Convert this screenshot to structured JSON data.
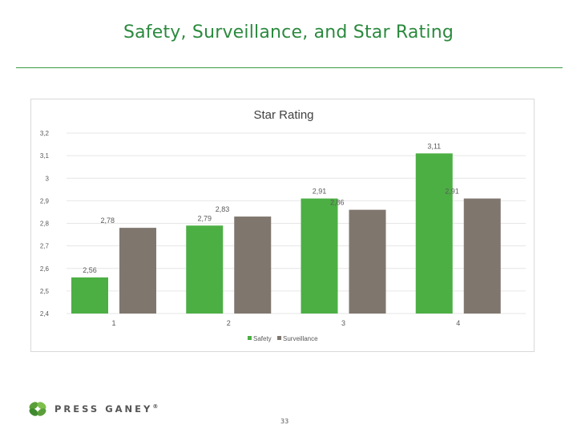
{
  "slide": {
    "title": "Safety, Surveillance, and Star Rating",
    "page_number": "33",
    "logo_text": "PRESS GANEY",
    "logo_mark": "®"
  },
  "colors": {
    "safety": "#4caf44",
    "surveillance": "#7f766e",
    "title": "#2b8a3e",
    "rule": "#3a9a3f",
    "gridline": "#e6e6e6",
    "axis_text": "#595959",
    "logo_green": "#5a9e3a"
  },
  "chart_data": {
    "type": "bar",
    "title": "Star Rating",
    "categories": [
      "1",
      "2",
      "3",
      "4"
    ],
    "series": [
      {
        "name": "Safety",
        "values": [
          2.56,
          2.79,
          2.91,
          3.11
        ],
        "labels": [
          "2,56",
          "2,79",
          "2,91",
          "3,11"
        ]
      },
      {
        "name": "Surveillance",
        "values": [
          2.78,
          2.83,
          2.86,
          2.91
        ],
        "labels": [
          "2,78",
          "2,83",
          "2,86",
          "2,91"
        ]
      }
    ],
    "ylim": [
      2.4,
      3.2
    ],
    "yticks": [
      3.2,
      3.1,
      3.0,
      2.9,
      2.8,
      2.7,
      2.6,
      2.5,
      2.4
    ],
    "ytick_labels": [
      "3,2",
      "3,1",
      "3",
      "2,9",
      "2,8",
      "2,7",
      "2,6",
      "2,5",
      "2,4"
    ],
    "grid": true,
    "legend_position": "bottom"
  }
}
